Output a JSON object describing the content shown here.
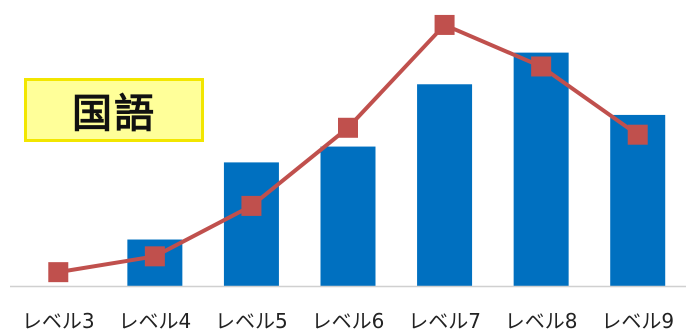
{
  "label_box": {
    "text": "国語"
  },
  "chart_data": {
    "type": "bar",
    "title": "",
    "xlabel": "",
    "ylabel": "",
    "categories": [
      "レベル3",
      "レベル4",
      "レベル5",
      "レベル6",
      "レベル7",
      "レベル8",
      "レベル9"
    ],
    "series": [
      {
        "type": "bar",
        "values": [
          0,
          47,
          125,
          141,
          204,
          236,
          173
        ]
      },
      {
        "type": "line",
        "marker": "square",
        "values": [
          14,
          30,
          81,
          160,
          264,
          222,
          153
        ]
      }
    ],
    "ylim": [
      0,
      270
    ],
    "grid": false,
    "legend": "none",
    "colors": {
      "bar": "#0070c0",
      "line": "#c0504d",
      "axis": "#d0d0d0"
    }
  }
}
